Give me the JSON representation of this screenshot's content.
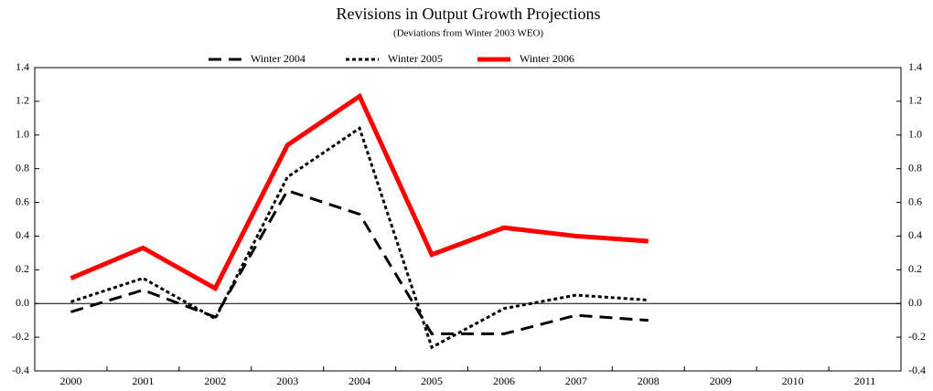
{
  "chart_data": {
    "type": "line",
    "title": "Revisions in Output Growth Projections",
    "subtitle": "(Deviations from Winter 2003 WEO)",
    "categories": [
      "2000",
      "2001",
      "2002",
      "2003",
      "2004",
      "2005",
      "2006",
      "2007",
      "2008",
      "2009",
      "2010",
      "2011"
    ],
    "series": [
      {
        "name": "Winter 2004",
        "color": "#000000",
        "style": "dashed",
        "values": [
          -0.05,
          0.08,
          -0.08,
          0.67,
          0.53,
          -0.18,
          -0.18,
          -0.07,
          -0.1,
          null,
          null,
          null
        ]
      },
      {
        "name": "Winter 2005",
        "color": "#000000",
        "style": "dotted",
        "values": [
          0.01,
          0.15,
          -0.09,
          0.75,
          1.04,
          -0.26,
          -0.03,
          0.05,
          0.02,
          null,
          null,
          null
        ]
      },
      {
        "name": "Winter 2006",
        "color": "#ff0000",
        "style": "solid",
        "values": [
          0.15,
          0.33,
          0.09,
          0.94,
          1.23,
          0.29,
          0.45,
          0.4,
          0.37,
          null,
          null,
          null
        ]
      }
    ],
    "ylim": [
      -0.4,
      1.4
    ],
    "yticks": [
      -0.4,
      -0.2,
      {
        "value": 0,
        "label": "0.0"
      },
      0.2,
      0.4,
      0.6,
      0.8,
      {
        "value": 1,
        "label": "1.0"
      },
      1.2,
      1.4
    ],
    "y2lim": [
      -0.4,
      1.4
    ],
    "y2ticks": [
      -0.4,
      -0.2,
      {
        "value": 0,
        "label": "0.0"
      },
      0.2,
      0.4,
      0.6,
      0.8,
      {
        "value": 1,
        "label": "1.0"
      },
      1.2,
      1.4
    ],
    "legend": "top"
  }
}
